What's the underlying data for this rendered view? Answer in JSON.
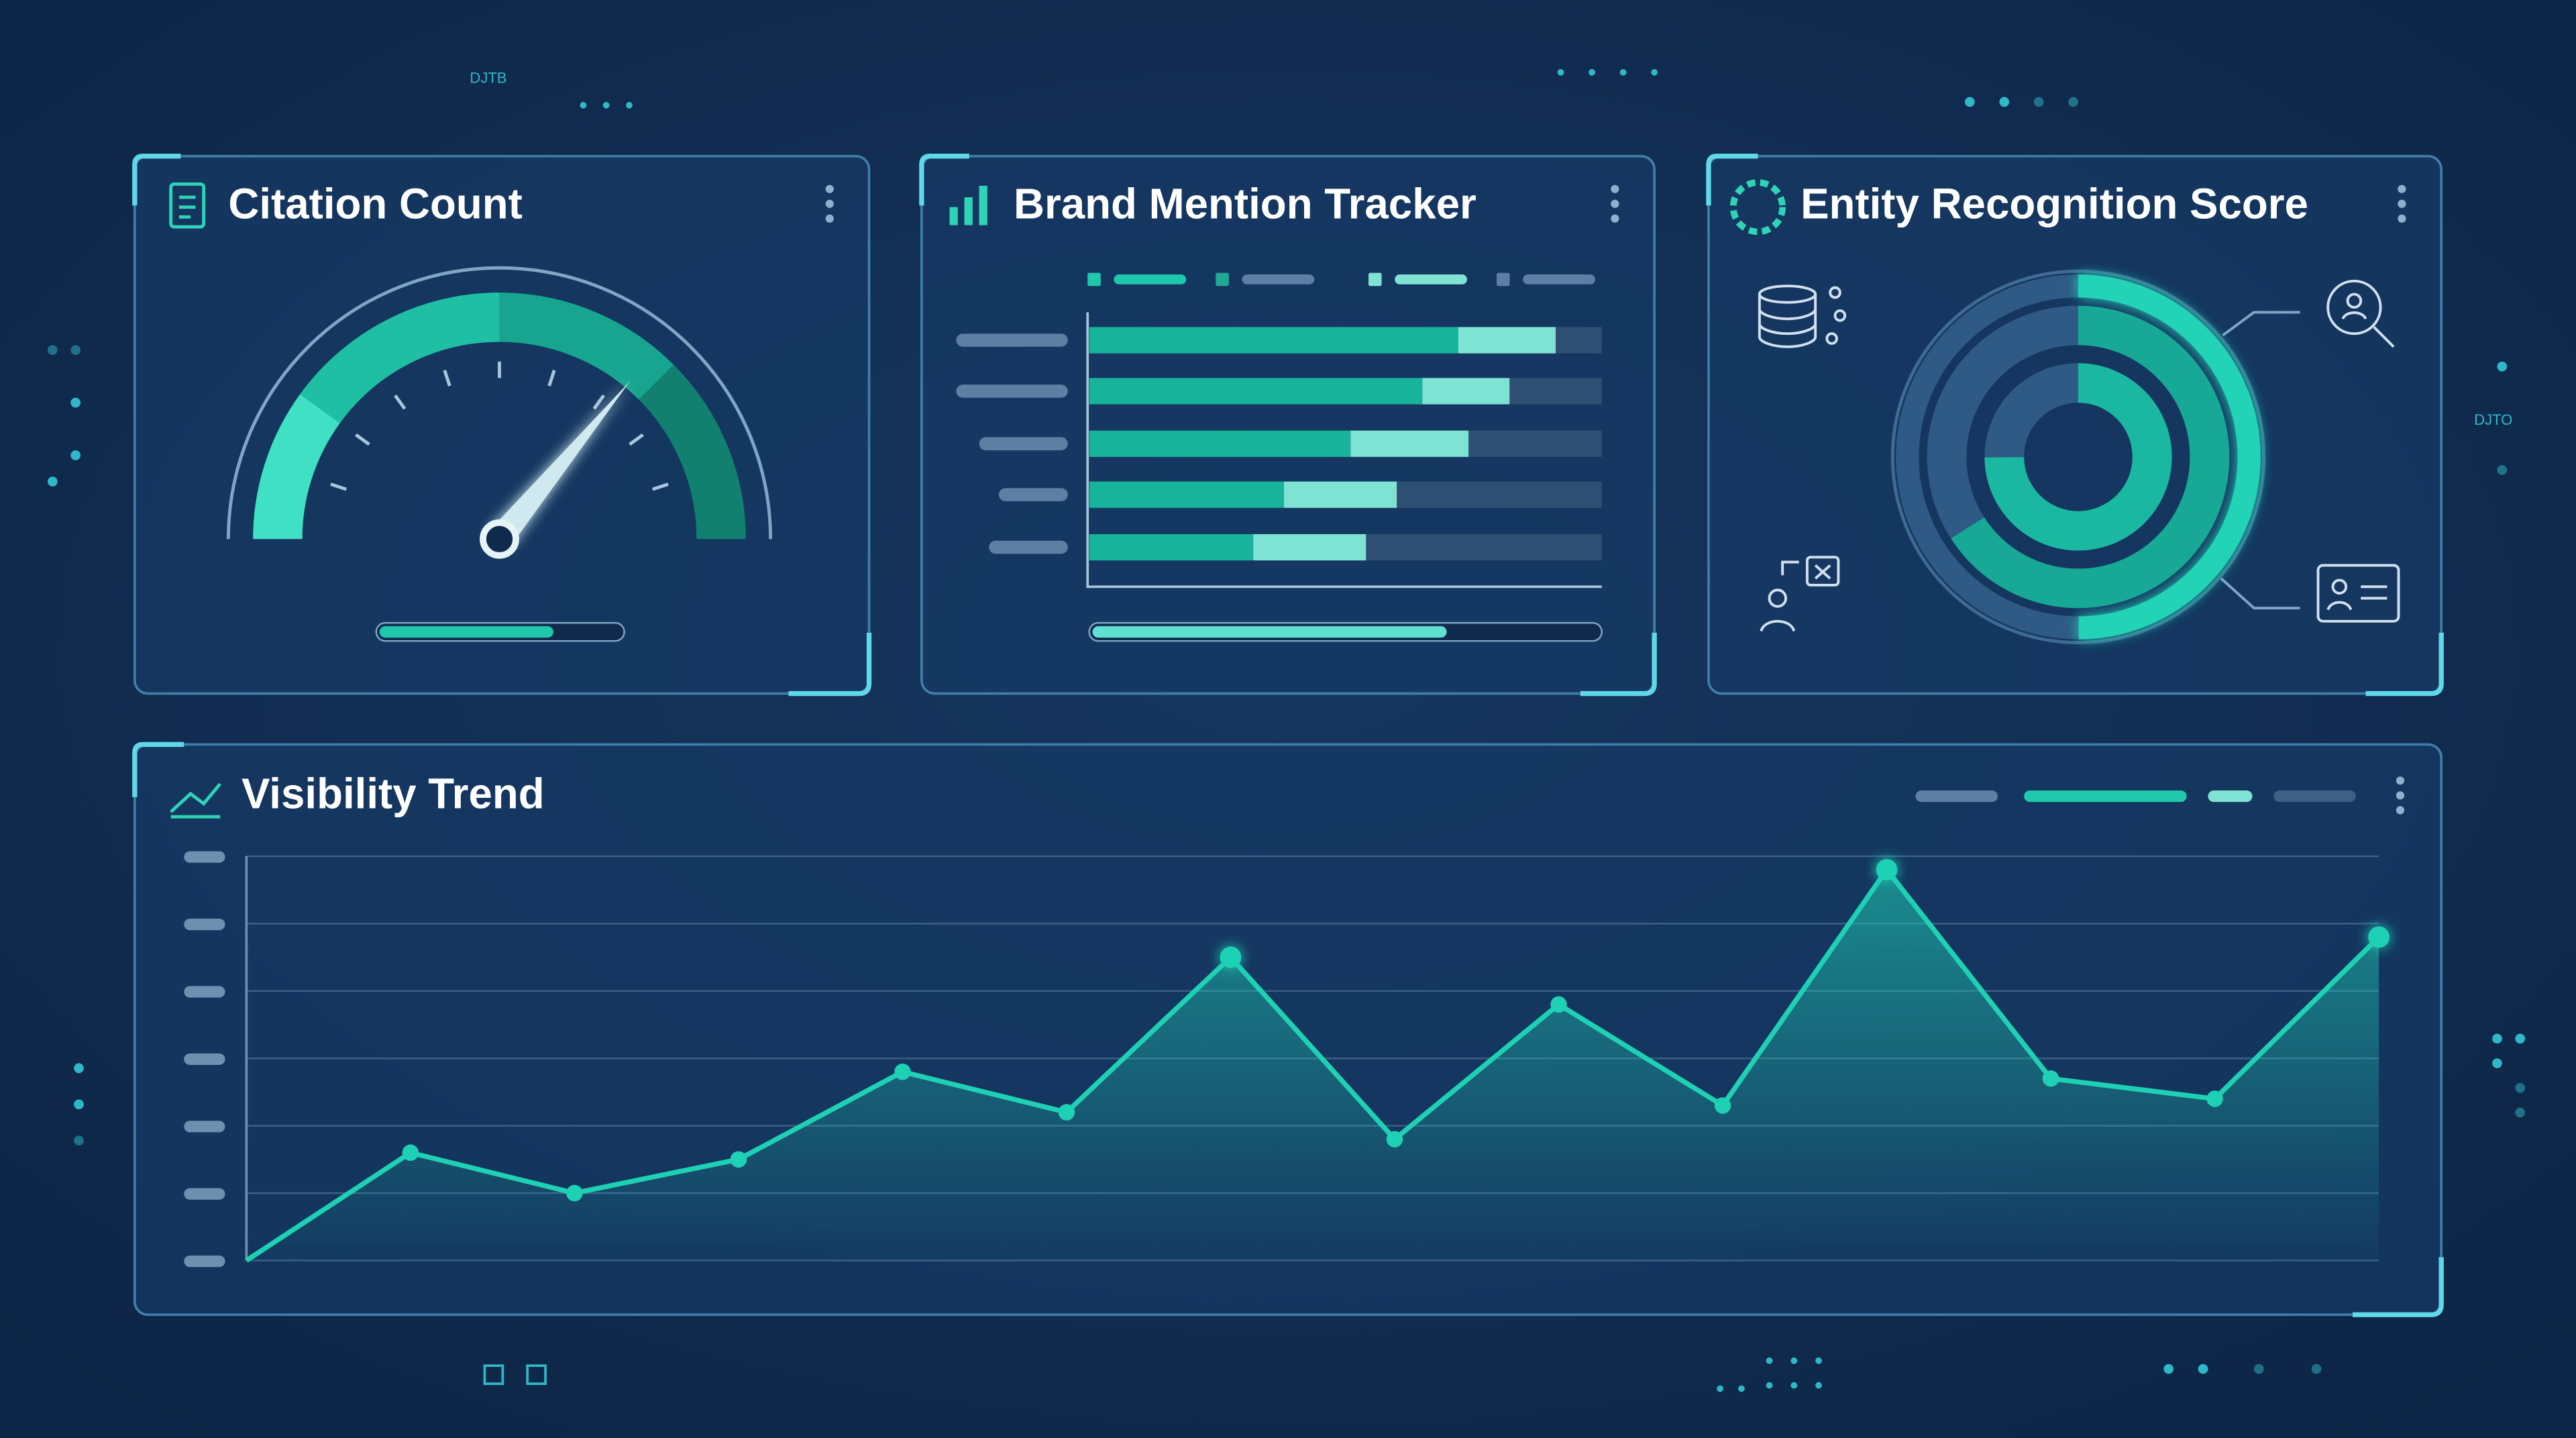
{
  "decor_labels": [
    "DJTB",
    "DJTO"
  ],
  "chart_data": [
    {
      "type": "gauge",
      "title": "Citation Count",
      "value": 72,
      "range": [
        0,
        100
      ],
      "progress": 72,
      "color": "#1fc8aa"
    },
    {
      "type": "bar",
      "title": "Brand Mention Tracker",
      "orientation": "horizontal",
      "stacked": true,
      "categories": [
        null,
        null,
        null,
        null,
        null
      ],
      "xlim": [
        0,
        100
      ],
      "progress": 70,
      "series": [
        {
          "color": "#17b39b",
          "values": [
            72,
            65,
            51,
            38,
            32
          ]
        },
        {
          "color": "#7fe3d4",
          "values": [
            19,
            17,
            23,
            22,
            22
          ]
        }
      ]
    },
    {
      "type": "donut",
      "title": "Entity Recognition Score",
      "range": [
        0,
        100
      ],
      "rings": [
        {
          "color": "#22d3b5",
          "value": 50
        },
        {
          "color": "#17a896",
          "value": 66
        },
        {
          "color": "#1ab8a0",
          "value": 75
        }
      ]
    },
    {
      "type": "line",
      "title": "Visibility Trend",
      "color": "#1fd1b4",
      "area": true,
      "grid": true,
      "categories": [
        null,
        null,
        null,
        null,
        null,
        null,
        null,
        null,
        null,
        null,
        null,
        null,
        null,
        null
      ],
      "values": [
        0,
        1.6,
        1.0,
        1.5,
        2.8,
        2.2,
        4.5,
        1.8,
        3.8,
        2.3,
        5.8,
        2.7,
        2.4,
        4.8
      ],
      "ylim": [
        0,
        6
      ],
      "yticks": [
        0,
        1,
        2,
        3,
        4,
        5,
        6
      ]
    }
  ]
}
